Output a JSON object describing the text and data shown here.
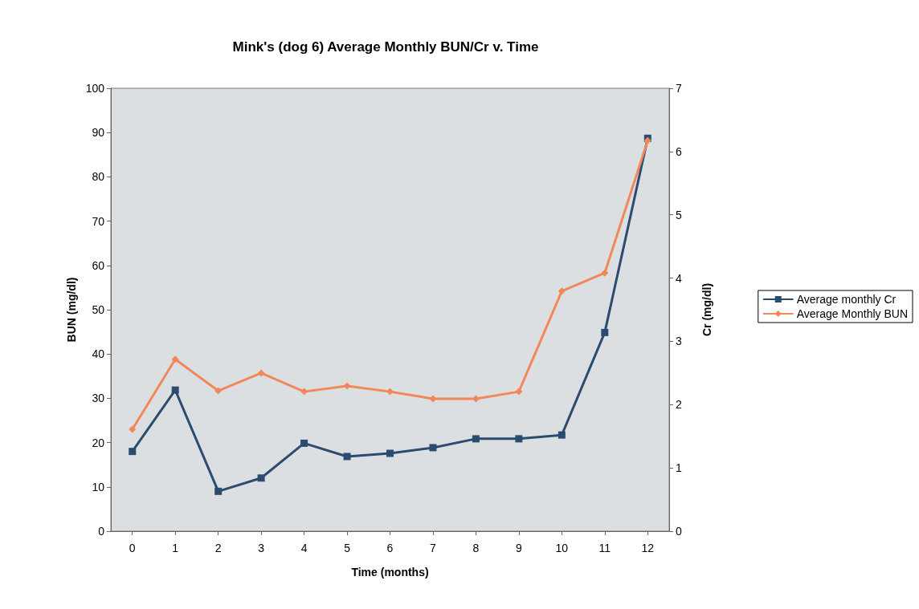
{
  "chart_data": {
    "type": "line",
    "title": "Mink's (dog 6) Average Monthly BUN/Cr v. Time",
    "xlabel": "Time (months)",
    "ylabel": "BUN (mg/dl)",
    "y2label": "Cr (mg/dl)",
    "x": [
      0,
      1,
      2,
      3,
      4,
      5,
      6,
      7,
      8,
      9,
      10,
      11,
      12
    ],
    "xlim": [
      -0.5,
      12.5
    ],
    "xticks": [
      0,
      1,
      2,
      3,
      4,
      5,
      6,
      7,
      8,
      9,
      10,
      11,
      12
    ],
    "series": [
      {
        "name": "Average monthly Cr",
        "color": "#2b4c6e",
        "axis": "y2",
        "marker": "square",
        "values": [
          1.26,
          2.23,
          0.63,
          0.84,
          1.39,
          1.18,
          1.23,
          1.32,
          1.46,
          1.46,
          1.52,
          3.14,
          6.21
        ]
      },
      {
        "name": "Average Monthly BUN",
        "color": "#f2875a",
        "axis": "y",
        "marker": "diamond",
        "values": [
          23,
          38.8,
          31.7,
          35.7,
          31.5,
          32.8,
          31.5,
          29.9,
          29.9,
          31.5,
          54.2,
          58.3,
          88.2
        ]
      }
    ],
    "ylim": [
      0,
      100
    ],
    "yticks": [
      0,
      10,
      20,
      30,
      40,
      50,
      60,
      70,
      80,
      90,
      100
    ],
    "y2lim": [
      0,
      7
    ],
    "y2ticks": [
      0,
      1,
      2,
      3,
      4,
      5,
      6,
      7
    ],
    "grid": false,
    "legend": "right",
    "line_style": "solid"
  }
}
